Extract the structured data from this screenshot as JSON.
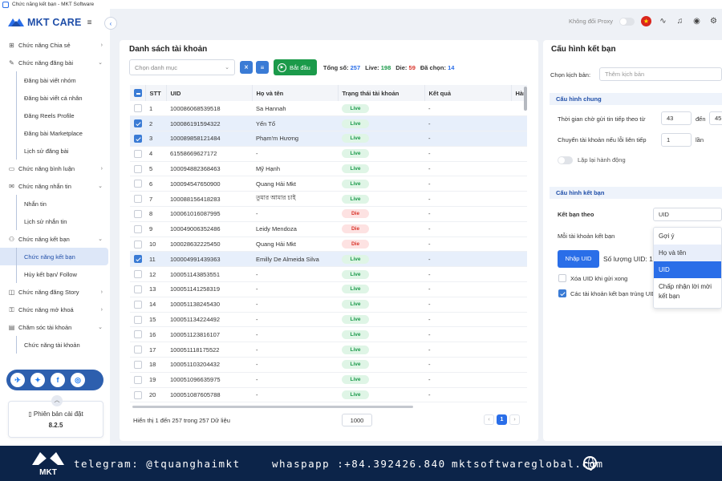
{
  "window": {
    "title": "Chức năng kết bạn - MKT Software"
  },
  "brand": {
    "name": "MKT CARE",
    "banner_logo": "MKT"
  },
  "topbar": {
    "proxy_label": "Không đổi Proxy",
    "flag_icon": "vietnam-flag-icon"
  },
  "sidebar": {
    "items": [
      {
        "label": "Chức năng Chia sẻ"
      },
      {
        "label": "Chức năng đăng bài"
      },
      {
        "label": "Chức năng bình luận"
      },
      {
        "label": "Chức năng nhắn tin"
      },
      {
        "label": "Chức năng kết bạn"
      },
      {
        "label": "Chức năng đăng Story"
      },
      {
        "label": "Chức năng mở khoá"
      },
      {
        "label": "Chăm sóc tài khoản"
      }
    ],
    "sub_post": [
      "Đăng bài viết nhóm",
      "Đăng bài viết cá nhân",
      "Đăng Reels Profile",
      "Đăng bài Marketplace",
      "Lịch sử đăng bài"
    ],
    "sub_msg": [
      "Nhắn tin",
      "Lịch sử nhắn tin"
    ],
    "sub_friend": [
      "Chức năng kết bạn",
      "Hủy kết bạn/ Follow"
    ],
    "sub_care": [
      "Chức năng tài khoản"
    ],
    "version_label": "Phiên bản cài đặt",
    "version_value": "8.2.5"
  },
  "accounts": {
    "title": "Danh sách tài khoản",
    "category_placeholder": "Chọn danh mục",
    "start_label": "Bắt đầu",
    "stats": {
      "total_label": "Tổng số:",
      "total": "257",
      "live_label": "Live:",
      "live": "198",
      "die_label": "Die:",
      "die": "59",
      "selected_label": "Đã chọn:",
      "selected": "14"
    },
    "columns": [
      "STT",
      "UID",
      "Họ và tên",
      "Trạng thái tài khoản",
      "Kết quả",
      "Hàn"
    ],
    "rows": [
      {
        "stt": "1",
        "uid": "100086068539518",
        "name": "Sa Hannah",
        "status": "Live",
        "result": "-",
        "checked": false
      },
      {
        "stt": "2",
        "uid": "100086191594322",
        "name": "Yến Tố",
        "status": "Live",
        "result": "-",
        "checked": true
      },
      {
        "stt": "3",
        "uid": "100089858121484",
        "name": "Phạm'm Hương",
        "status": "Live",
        "result": "-",
        "checked": true
      },
      {
        "stt": "4",
        "uid": "61558669627172",
        "name": "-",
        "status": "Live",
        "result": "-",
        "checked": false
      },
      {
        "stt": "5",
        "uid": "100094882368463",
        "name": "Mỹ Hạnh",
        "status": "Live",
        "result": "-",
        "checked": false
      },
      {
        "stt": "6",
        "uid": "100094547650900",
        "name": "Quang Hải Mkt",
        "status": "Live",
        "result": "-",
        "checked": false
      },
      {
        "stt": "7",
        "uid": "100088156418283",
        "name": "তুমার আমার চাই",
        "status": "Live",
        "result": "-",
        "checked": false
      },
      {
        "stt": "8",
        "uid": "100061016087995",
        "name": "-",
        "status": "Die",
        "result": "-",
        "checked": false
      },
      {
        "stt": "9",
        "uid": "100049006352486",
        "name": "Leidy Mendoza",
        "status": "Die",
        "result": "-",
        "checked": false
      },
      {
        "stt": "10",
        "uid": "100028632225450",
        "name": "Quang Hải Mkt",
        "status": "Die",
        "result": "-",
        "checked": false
      },
      {
        "stt": "11",
        "uid": "100004991439363",
        "name": "Emilly De Almeida Silva",
        "status": "Live",
        "result": "-",
        "checked": true
      },
      {
        "stt": "12",
        "uid": "100051143853551",
        "name": "-",
        "status": "Live",
        "result": "-",
        "checked": false
      },
      {
        "stt": "13",
        "uid": "100051141258319",
        "name": "-",
        "status": "Live",
        "result": "-",
        "checked": false
      },
      {
        "stt": "14",
        "uid": "100051138245430",
        "name": "-",
        "status": "Live",
        "result": "-",
        "checked": false
      },
      {
        "stt": "15",
        "uid": "100051134224492",
        "name": "-",
        "status": "Live",
        "result": "-",
        "checked": false
      },
      {
        "stt": "16",
        "uid": "100051123816107",
        "name": "-",
        "status": "Live",
        "result": "-",
        "checked": false
      },
      {
        "stt": "17",
        "uid": "100051118175522",
        "name": "-",
        "status": "Live",
        "result": "-",
        "checked": false
      },
      {
        "stt": "18",
        "uid": "100051103204432",
        "name": "-",
        "status": "Live",
        "result": "-",
        "checked": false
      },
      {
        "stt": "19",
        "uid": "100051096635975",
        "name": "-",
        "status": "Live",
        "result": "-",
        "checked": false
      },
      {
        "stt": "20",
        "uid": "100051087605788",
        "name": "-",
        "status": "Live",
        "result": "-",
        "checked": false
      }
    ],
    "footer_text": "Hiển thị 1 đến 257 trong 257 Dữ liệu",
    "page_size": "1000",
    "current_page": "1"
  },
  "config": {
    "title": "Cấu hình kết bạn",
    "scenario_label": "Chọn kịch bản:",
    "scenario_placeholder": "Thêm kịch bản",
    "general_section": "Cấu hình chung",
    "wait_label": "Thời gian chờ gửi tin tiếp theo từ",
    "wait_from": "43",
    "to_label": "đến",
    "wait_to": "45",
    "switch_label": "Chuyển tài khoản nếu lỗi liên tiếp",
    "switch_value": "1",
    "times_label": "lần",
    "repeat_label": "Lặp lại hành động",
    "friend_section": "Cấu hình kết bạn",
    "friend_by_label": "Kết bạn theo",
    "friend_by_value": "UID",
    "per_account_label": "Mỗi tài khoản kết bạn",
    "import_label": "Nhập UID",
    "uid_count_label": "Số lượng UID: 1",
    "delete_uid_label": "Xóa UID khi gửi xong",
    "same_uid_label": "Các tài khoản kết bạn trùng UID",
    "dropdown_options": [
      "Gợi ý",
      "Họ và tên",
      "UID",
      "Chấp nhận lời mời kết bạn"
    ]
  },
  "banner": {
    "telegram": "telegram: @tquanghaimkt",
    "whatsapp": "whaspapp :+84.392426.840",
    "website": "mktsoftwareglobal.com"
  }
}
